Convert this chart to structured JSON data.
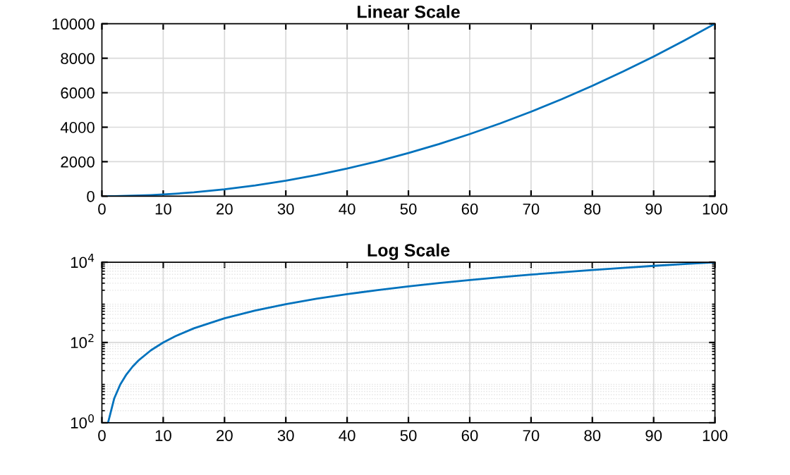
{
  "chart_data": [
    {
      "type": "line",
      "title": "Linear Scale",
      "x": [
        1,
        2,
        3,
        4,
        5,
        6,
        8,
        10,
        12,
        15,
        20,
        25,
        30,
        35,
        40,
        45,
        50,
        55,
        60,
        65,
        70,
        75,
        80,
        85,
        90,
        95,
        100
      ],
      "series": [
        {
          "color": "#0072bd",
          "values": [
            1,
            4,
            9,
            16,
            25,
            36,
            64,
            100,
            144,
            225,
            400,
            625,
            900,
            1225,
            1600,
            2025,
            2500,
            3025,
            3600,
            4225,
            4900,
            5625,
            6400,
            7225,
            8100,
            9025,
            10000
          ]
        }
      ],
      "xlim": [
        0,
        100
      ],
      "xticks": [
        0,
        10,
        20,
        30,
        40,
        50,
        60,
        70,
        80,
        90,
        100
      ],
      "ylim": [
        0,
        10000
      ],
      "yticks": [
        0,
        2000,
        4000,
        6000,
        8000,
        10000
      ],
      "grid": true
    },
    {
      "type": "line",
      "title": "Log Scale",
      "log": "y",
      "x": [
        1,
        2,
        3,
        4,
        5,
        6,
        8,
        10,
        12,
        15,
        20,
        25,
        30,
        35,
        40,
        45,
        50,
        55,
        60,
        65,
        70,
        75,
        80,
        85,
        90,
        95,
        100
      ],
      "series": [
        {
          "color": "#0072bd",
          "values": [
            1,
            4,
            9,
            16,
            25,
            36,
            64,
            100,
            144,
            225,
            400,
            625,
            900,
            1225,
            1600,
            2025,
            2500,
            3025,
            3600,
            4225,
            4900,
            5625,
            6400,
            7225,
            8100,
            9025,
            10000
          ]
        }
      ],
      "xlim": [
        0,
        100
      ],
      "xticks": [
        0,
        10,
        20,
        30,
        40,
        50,
        60,
        70,
        80,
        90,
        100
      ],
      "ylim": [
        1,
        10000
      ],
      "yticks": [
        {
          "value": 1,
          "label": "10$^{0}$"
        },
        {
          "value": 100,
          "label": "10$^{2}$"
        },
        {
          "value": 10000,
          "label": "10$^{4}$"
        }
      ],
      "grid": true
    }
  ]
}
